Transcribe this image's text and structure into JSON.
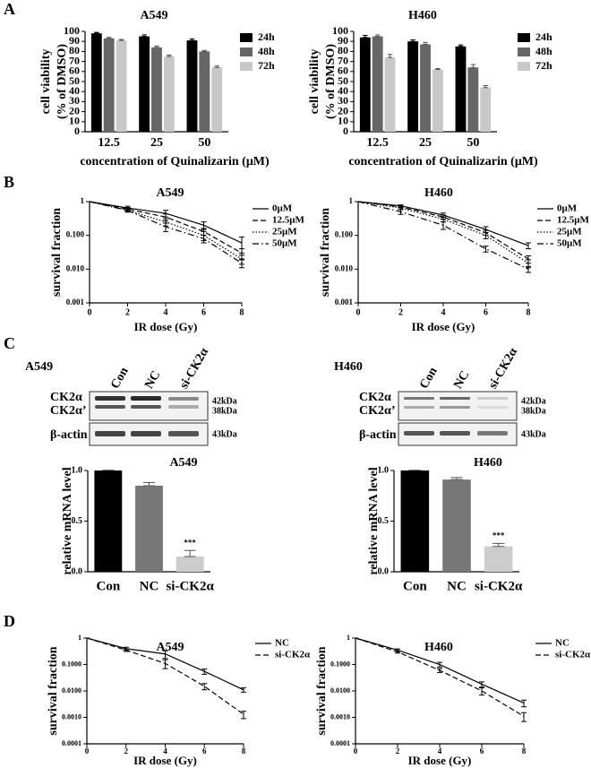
{
  "panel_labels": [
    "A",
    "B",
    "C",
    "D"
  ],
  "blots": [
    {
      "cell_line": "A549",
      "lanes": [
        "Con",
        "NC",
        "si-CK2α"
      ],
      "bands": [
        "CK2α",
        "CK2α’",
        "β-actin"
      ],
      "sizes": [
        "42kDa",
        "38kDa",
        "43kDa"
      ]
    },
    {
      "cell_line": "H460",
      "lanes": [
        "Con",
        "NC",
        "si-CK2α"
      ],
      "bands": [
        "CK2α",
        "CK2α’",
        "β-actin"
      ],
      "sizes": [
        "42kDa",
        "38kDa",
        "43kDa"
      ]
    }
  ],
  "chart_data": [
    {
      "type": "bar",
      "title": "A549",
      "categories": [
        "12.5",
        "25",
        "50"
      ],
      "series": [
        {
          "name": "24h",
          "color": "#000000",
          "values": [
            98,
            95,
            91
          ],
          "errors": [
            1,
            1.5,
            1.5
          ]
        },
        {
          "name": "48h",
          "color": "#666666",
          "values": [
            93,
            84,
            80
          ],
          "errors": [
            1,
            1.5,
            1
          ]
        },
        {
          "name": "72h",
          "color": "#c8c8c8",
          "values": [
            91,
            75,
            64
          ],
          "errors": [
            1,
            1.5,
            1.5
          ]
        }
      ],
      "ylim": [
        0,
        100
      ],
      "yticks": [
        0,
        10,
        20,
        30,
        40,
        50,
        60,
        70,
        80,
        90,
        100
      ],
      "xlabel": "concentration of Quinalizarin (μM)",
      "ylabel": [
        "cell viability",
        "(% of DMSO)"
      ],
      "legend": "right"
    },
    {
      "type": "bar",
      "title": "H460",
      "categories": [
        "12.5",
        "25",
        "50"
      ],
      "series": [
        {
          "name": "24h",
          "color": "#000000",
          "values": [
            94,
            90,
            85
          ],
          "errors": [
            2,
            1.5,
            1.5
          ]
        },
        {
          "name": "48h",
          "color": "#666666",
          "values": [
            95,
            87,
            64
          ],
          "errors": [
            1.5,
            2,
            3
          ]
        },
        {
          "name": "72h",
          "color": "#c8c8c8",
          "values": [
            74,
            62,
            44
          ],
          "errors": [
            3,
            1,
            2
          ]
        }
      ],
      "ylim": [
        0,
        100
      ],
      "yticks": [
        0,
        10,
        20,
        30,
        40,
        50,
        60,
        70,
        80,
        90,
        100
      ],
      "xlabel": "concentration of Quinalizarin (μM)",
      "ylabel": [
        "cell viability",
        "(% of DMSO)"
      ],
      "legend": "right"
    },
    {
      "type": "line",
      "title": "A549",
      "x": [
        0,
        2,
        4,
        6,
        8
      ],
      "log_scale": true,
      "series": [
        {
          "name": "0μM",
          "color": "#000000",
          "line_style": "solid",
          "values": [
            1,
            0.65,
            0.45,
            0.2,
            0.06
          ],
          "errors": [
            0,
            0.08,
            0.1,
            0.05,
            0.03
          ]
        },
        {
          "name": "12.5μM",
          "color": "#000000",
          "line_style": "dashed",
          "values": [
            1,
            0.6,
            0.35,
            0.13,
            0.03
          ],
          "errors": [
            0,
            0.07,
            0.08,
            0.03,
            0.01
          ]
        },
        {
          "name": "25μM",
          "color": "#000000",
          "line_style": "dotted",
          "values": [
            1,
            0.55,
            0.25,
            0.1,
            0.02
          ],
          "errors": [
            0,
            0.06,
            0.06,
            0.03,
            0.006
          ]
        },
        {
          "name": "50μM",
          "color": "#000000",
          "line_style": "dashdot",
          "values": [
            1,
            0.55,
            0.18,
            0.08,
            0.015
          ],
          "errors": [
            0,
            0.06,
            0.05,
            0.02,
            0.004
          ]
        }
      ],
      "xlim": [
        0,
        8
      ],
      "xticks": [
        0,
        2,
        4,
        6,
        8
      ],
      "ylim": [
        0.001,
        1
      ],
      "yticks": [
        0.001,
        {
          "value": 0.01,
          "label": "0.010"
        },
        {
          "value": 0.1,
          "label": "0.100"
        },
        1
      ],
      "xlabel": "IR dose (Gy)",
      "ylabel": "survival fraction",
      "legend": "right"
    },
    {
      "type": "line",
      "title": "H460",
      "x": [
        0,
        2,
        4,
        6,
        8
      ],
      "log_scale": true,
      "series": [
        {
          "name": "0μM",
          "color": "#000000",
          "line_style": "solid",
          "values": [
            1,
            0.75,
            0.4,
            0.15,
            0.05
          ],
          "errors": [
            0,
            0.05,
            0.06,
            0.03,
            0.01
          ]
        },
        {
          "name": "12.5μM",
          "color": "#000000",
          "line_style": "dashed",
          "values": [
            1,
            0.7,
            0.35,
            0.12,
            0.02
          ],
          "errors": [
            0,
            0.05,
            0.05,
            0.02,
            0.005
          ]
        },
        {
          "name": "25μM",
          "color": "#000000",
          "line_style": "dotted",
          "values": [
            1,
            0.65,
            0.3,
            0.1,
            0.015
          ],
          "errors": [
            0,
            0.06,
            0.05,
            0.02,
            0.004
          ]
        },
        {
          "name": "50μM",
          "color": "#000000",
          "line_style": "dashdot",
          "values": [
            1,
            0.5,
            0.2,
            0.04,
            0.01
          ],
          "errors": [
            0,
            0.08,
            0.05,
            0.008,
            0.002
          ]
        }
      ],
      "xlim": [
        0,
        8
      ],
      "xticks": [
        0,
        2,
        4,
        6,
        8
      ],
      "ylim": [
        0.001,
        1
      ],
      "yticks": [
        0.001,
        {
          "value": 0.01,
          "label": "0.010"
        },
        {
          "value": 0.1,
          "label": "0.100"
        },
        1
      ],
      "xlabel": "IR dose (Gy)",
      "ylabel": "survival fraction",
      "legend": "right"
    },
    {
      "type": "bar",
      "title": "A549",
      "categories": [
        "Con",
        "NC",
        "si-CK2α"
      ],
      "values": [
        1,
        0.85,
        0.15
      ],
      "errors": [
        0,
        0.03,
        0.06
      ],
      "colors": [
        "#000000",
        "#777777",
        "#cccccc"
      ],
      "significance": [
        null,
        null,
        "***"
      ],
      "ylim": [
        0,
        1
      ],
      "yticks": [
        {
          "value": 0,
          "label": "0.0"
        },
        {
          "value": 0.5,
          "label": "0.5"
        },
        {
          "value": 1,
          "label": "1.0"
        }
      ],
      "ylabel": "relative mRNA level"
    },
    {
      "type": "bar",
      "title": "H460",
      "categories": [
        "Con",
        "NC",
        "si-CK2α"
      ],
      "values": [
        1,
        0.91,
        0.25
      ],
      "errors": [
        0,
        0.02,
        0.03
      ],
      "colors": [
        "#000000",
        "#777777",
        "#cccccc"
      ],
      "significance": [
        null,
        null,
        "***"
      ],
      "ylim": [
        0,
        1
      ],
      "yticks": [
        {
          "value": 0,
          "label": "0.0"
        },
        {
          "value": 0.5,
          "label": "0.5"
        },
        {
          "value": 1,
          "label": "1.0"
        }
      ],
      "ylabel": "relative mRNA level"
    },
    {
      "type": "line",
      "title": "A549",
      "x": [
        0,
        2,
        4,
        6,
        8
      ],
      "log_scale": true,
      "series": [
        {
          "name": "NC",
          "color": "#000000",
          "line_style": "solid",
          "values": [
            1,
            0.4,
            0.25,
            0.055,
            0.011
          ],
          "errors": [
            0,
            0.05,
            0.08,
            0.012,
            0.002
          ]
        },
        {
          "name": "si-CK2α",
          "color": "#000000",
          "line_style": "dashed",
          "values": [
            1,
            0.35,
            0.11,
            0.015,
            0.0013
          ],
          "errors": [
            0,
            0.04,
            0.04,
            0.004,
            0.0004
          ]
        }
      ],
      "xlim": [
        0,
        8
      ],
      "xticks": [
        0,
        2,
        4,
        6,
        8
      ],
      "ylim": [
        0.0001,
        1
      ],
      "yticks": [
        0.0001,
        {
          "value": 0.001,
          "label": "0.0010"
        },
        {
          "value": 0.01,
          "label": "0.0100"
        },
        {
          "value": 0.1,
          "label": "0.1000"
        },
        1
      ],
      "xlabel": "IR dose (Gy)",
      "ylabel": "survival fraction",
      "legend": "right"
    },
    {
      "type": "line",
      "title": "H460",
      "x": [
        0,
        2,
        4,
        6,
        8
      ],
      "log_scale": true,
      "series": [
        {
          "name": "NC",
          "color": "#000000",
          "line_style": "solid",
          "values": [
            1,
            0.35,
            0.1,
            0.018,
            0.0035
          ],
          "errors": [
            0,
            0.04,
            0.02,
            0.004,
            0.001
          ]
        },
        {
          "name": "si-CK2α",
          "color": "#000000",
          "line_style": "dashed",
          "values": [
            1,
            0.3,
            0.06,
            0.01,
            0.0011
          ],
          "errors": [
            0,
            0.03,
            0.01,
            0.003,
            0.0004
          ]
        }
      ],
      "xlim": [
        0,
        8
      ],
      "xticks": [
        0,
        2,
        4,
        6,
        8
      ],
      "ylim": [
        0.0001,
        1
      ],
      "yticks": [
        0.0001,
        {
          "value": 0.001,
          "label": "0.0010"
        },
        {
          "value": 0.01,
          "label": "0.0100"
        },
        {
          "value": 0.1,
          "label": "0.1000"
        },
        1
      ],
      "xlabel": "IR dose (Gy)",
      "ylabel": "survival fraction",
      "legend": "right"
    }
  ]
}
